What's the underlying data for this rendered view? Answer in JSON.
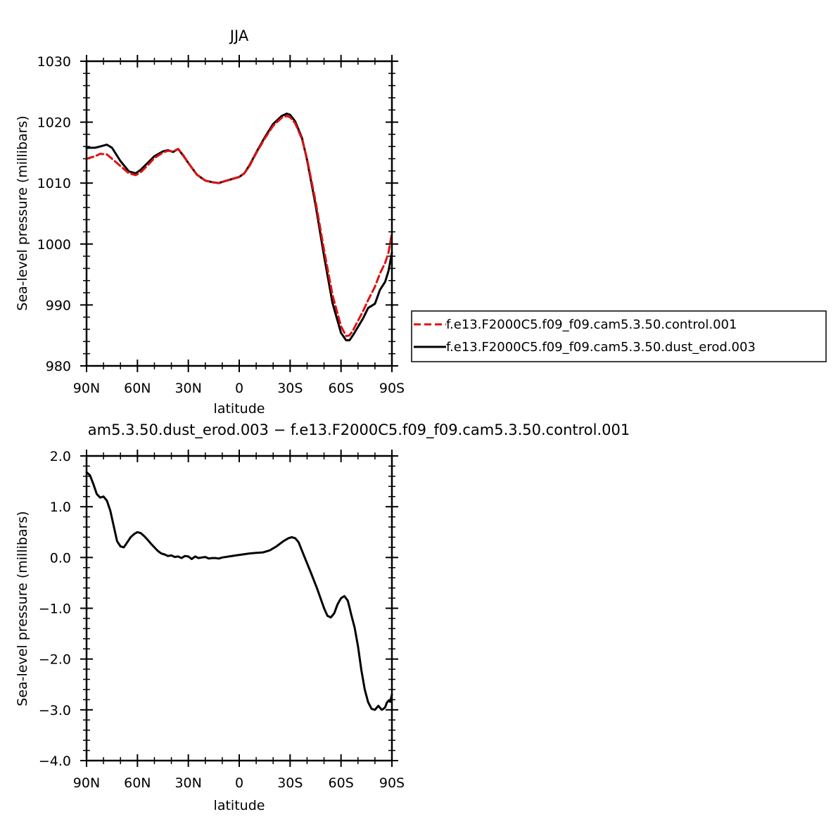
{
  "chart_data": [
    {
      "type": "line",
      "title": "JJA",
      "xlabel": "latitude",
      "ylabel": "Sea-level pressure (millibars)",
      "xlim": [
        -90,
        90
      ],
      "ylim": [
        980,
        1030
      ],
      "xticks": [
        -90,
        -60,
        -30,
        0,
        30,
        60,
        90
      ],
      "xtick_labels": [
        "90N",
        "60N",
        "30N",
        "0",
        "30S",
        "60S",
        "90S"
      ],
      "yticks": [
        980,
        990,
        1000,
        1010,
        1020,
        1030
      ],
      "ytick_labels": [
        "980",
        "990",
        "1000",
        "1010",
        "1020",
        "1030"
      ],
      "legend_position": "right",
      "series": [
        {
          "name": "f.e13.F2000C5.f09_f09.cam5.3.50.control.001",
          "color": "#e01010",
          "style": "dashed",
          "x": [
            -90,
            -85,
            -82,
            -78,
            -75,
            -70,
            -65,
            -61,
            -58,
            -54,
            -50,
            -45,
            -42,
            -39,
            -36,
            -33,
            -30,
            -25,
            -20,
            -15,
            -12,
            -10,
            -5,
            0,
            3,
            6,
            10,
            15,
            20,
            25,
            28,
            30,
            33,
            37,
            40,
            45,
            50,
            55,
            60,
            63,
            65,
            67,
            70,
            73,
            76,
            80,
            83,
            86,
            88,
            90
          ],
          "values": [
            1014.0,
            1014.4,
            1014.8,
            1014.7,
            1014.0,
            1012.8,
            1011.6,
            1011.3,
            1011.8,
            1012.9,
            1014.1,
            1015.0,
            1015.3,
            1015.2,
            1015.6,
            1014.6,
            1013.3,
            1011.4,
            1010.4,
            1010.1,
            1010.0,
            1010.2,
            1010.6,
            1011.0,
            1011.6,
            1012.8,
            1014.9,
            1017.3,
            1019.4,
            1020.7,
            1021.0,
            1020.8,
            1019.8,
            1017.2,
            1014.0,
            1007.0,
            999.0,
            991.6,
            986.5,
            984.9,
            985.0,
            985.8,
            987.4,
            989.0,
            990.8,
            993.0,
            995.2,
            996.9,
            998.6,
            1001.8
          ]
        },
        {
          "name": "f.e13.F2000C5.f09_f09.cam5.3.50.dust_erod.003",
          "color": "#000000",
          "style": "solid",
          "x": [
            -90,
            -85,
            -82,
            -78,
            -75,
            -70,
            -65,
            -61,
            -58,
            -54,
            -50,
            -45,
            -42,
            -39,
            -36,
            -33,
            -30,
            -25,
            -20,
            -15,
            -12,
            -10,
            -5,
            0,
            3,
            6,
            10,
            15,
            20,
            25,
            28,
            30,
            33,
            37,
            40,
            45,
            50,
            55,
            60,
            63,
            65,
            67,
            70,
            73,
            76,
            80,
            83,
            86,
            88,
            90
          ],
          "values": [
            1015.8,
            1015.8,
            1016.0,
            1016.3,
            1015.8,
            1013.6,
            1011.9,
            1011.6,
            1012.2,
            1013.3,
            1014.4,
            1015.2,
            1015.4,
            1015.1,
            1015.6,
            1014.5,
            1013.3,
            1011.4,
            1010.4,
            1010.1,
            1010.0,
            1010.2,
            1010.6,
            1011.0,
            1011.6,
            1012.9,
            1015.0,
            1017.5,
            1019.7,
            1021.0,
            1021.4,
            1021.2,
            1020.1,
            1017.4,
            1013.8,
            1006.4,
            998.0,
            990.3,
            985.4,
            984.2,
            984.2,
            985.0,
            986.4,
            987.8,
            989.5,
            990.2,
            992.5,
            993.8,
            995.6,
            998.6
          ]
        }
      ]
    },
    {
      "type": "line",
      "title": "am5.3.50.dust_erod.003 − f.e13.F2000C5.f09_f09.cam5.3.50.control.001",
      "xlabel": "latitude",
      "ylabel": "Sea-level pressure (millibars)",
      "xlim": [
        -90,
        90
      ],
      "ylim": [
        -4.0,
        2.0
      ],
      "xticks": [
        -90,
        -60,
        -30,
        0,
        30,
        60,
        90
      ],
      "xtick_labels": [
        "90N",
        "60N",
        "30N",
        "0",
        "30S",
        "60S",
        "90S"
      ],
      "yticks": [
        -4.0,
        -3.0,
        -2.0,
        -1.0,
        0.0,
        1.0,
        2.0
      ],
      "ytick_labels": [
        "−4.0",
        "−3.0",
        "−2.0",
        "−1.0",
        "0.0",
        "1.0",
        "2.0"
      ],
      "series": [
        {
          "color": "#000000",
          "style": "solid",
          "x": [
            -90,
            -88,
            -86,
            -84,
            -82,
            -80,
            -78,
            -76,
            -74,
            -72,
            -70,
            -68,
            -66,
            -64,
            -62,
            -60,
            -58,
            -56,
            -54,
            -52,
            -50,
            -48,
            -46,
            -44,
            -42,
            -40,
            -38,
            -36,
            -34,
            -32,
            -30,
            -28,
            -26,
            -24,
            -22,
            -20,
            -18,
            -16,
            -14,
            -12,
            -10,
            -6,
            -2,
            2,
            6,
            10,
            14,
            18,
            22,
            26,
            29,
            31,
            33,
            35,
            38,
            42,
            46,
            50,
            52,
            54,
            56,
            58,
            60,
            62,
            64,
            65,
            66,
            68,
            70,
            72,
            74,
            76,
            78,
            80,
            82,
            84,
            85,
            86,
            87,
            88,
            89,
            90
          ],
          "values": [
            1.68,
            1.62,
            1.45,
            1.25,
            1.18,
            1.2,
            1.12,
            0.92,
            0.62,
            0.32,
            0.22,
            0.2,
            0.3,
            0.4,
            0.46,
            0.5,
            0.48,
            0.42,
            0.35,
            0.27,
            0.2,
            0.13,
            0.08,
            0.06,
            0.03,
            0.04,
            0.01,
            0.02,
            -0.01,
            0.03,
            0.02,
            -0.03,
            0.02,
            -0.01,
            0.0,
            0.01,
            -0.02,
            -0.01,
            -0.01,
            -0.02,
            0.0,
            0.02,
            0.04,
            0.06,
            0.08,
            0.09,
            0.1,
            0.14,
            0.22,
            0.32,
            0.38,
            0.4,
            0.38,
            0.3,
            0.05,
            -0.28,
            -0.62,
            -1.0,
            -1.15,
            -1.18,
            -1.1,
            -0.92,
            -0.8,
            -0.76,
            -0.85,
            -0.98,
            -1.12,
            -1.38,
            -1.75,
            -2.22,
            -2.6,
            -2.85,
            -2.98,
            -3.0,
            -2.92,
            -3.0,
            -2.98,
            -2.95,
            -2.86,
            -2.82,
            -2.84,
            -2.7
          ]
        }
      ]
    }
  ]
}
